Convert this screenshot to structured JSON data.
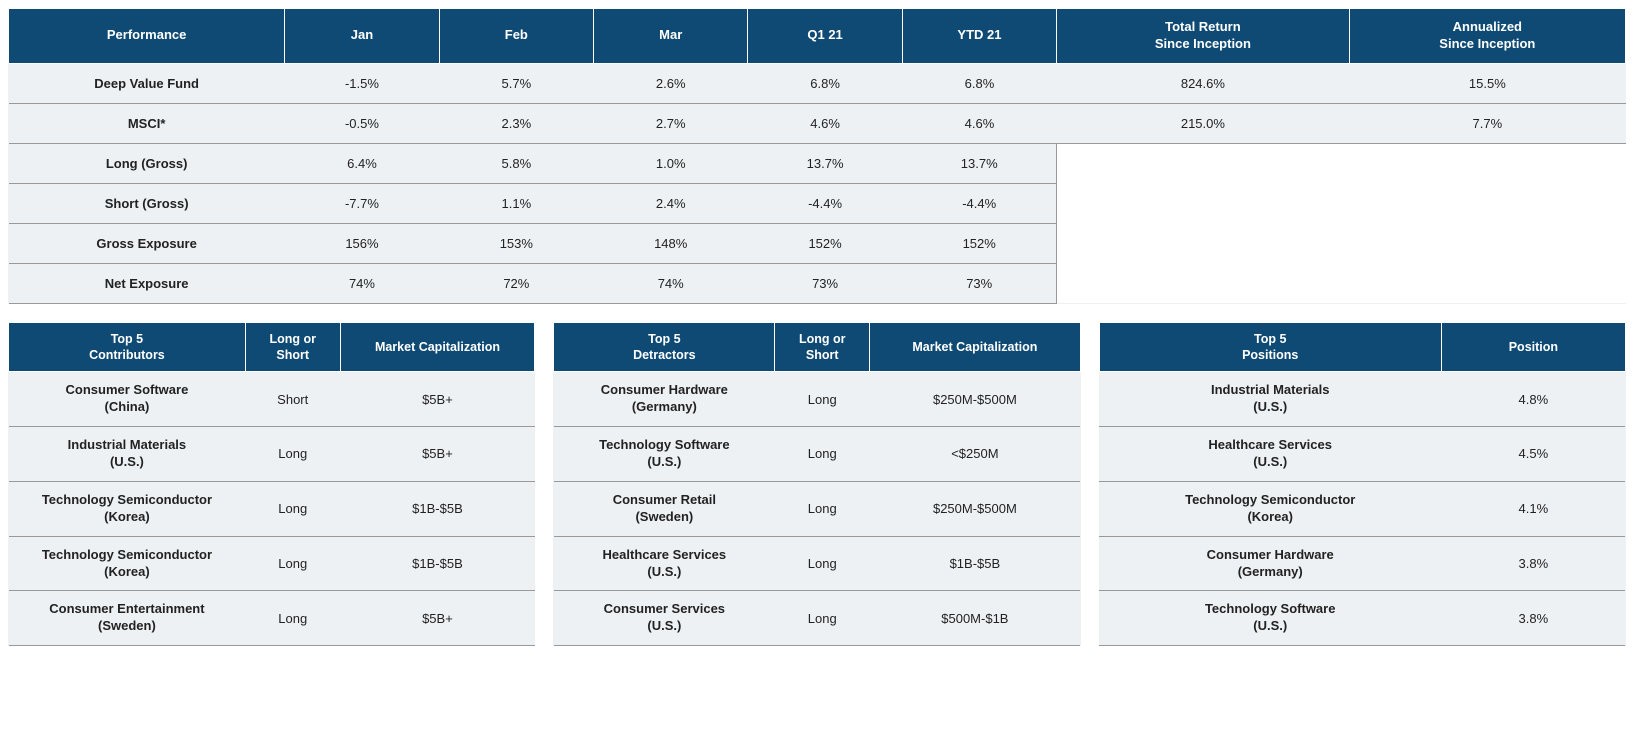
{
  "colors": {
    "header_bg": "#0f4a74",
    "header_text": "#ffffff",
    "body_bg": "#eef1f4",
    "border": "#999999",
    "text": "#222222"
  },
  "performance": {
    "headers": [
      "Performance",
      "Jan",
      "Feb",
      "Mar",
      "Q1 21",
      "YTD 21",
      "Total Return\nSince Inception",
      "Annualized\nSince Inception"
    ],
    "rows": [
      {
        "label": "Deep Value Fund",
        "jan": "-1.5%",
        "feb": "5.7%",
        "mar": "2.6%",
        "q1": "6.8%",
        "ytd": "6.8%",
        "total": "824.6%",
        "ann": "15.5%"
      },
      {
        "label": "MSCI*",
        "jan": "-0.5%",
        "feb": "2.3%",
        "mar": "2.7%",
        "q1": "4.6%",
        "ytd": "4.6%",
        "total": "215.0%",
        "ann": "7.7%"
      },
      {
        "label": "Long (Gross)",
        "jan": "6.4%",
        "feb": "5.8%",
        "mar": "1.0%",
        "q1": "13.7%",
        "ytd": "13.7%"
      },
      {
        "label": "Short (Gross)",
        "jan": "-7.7%",
        "feb": "1.1%",
        "mar": "2.4%",
        "q1": "-4.4%",
        "ytd": "-4.4%"
      },
      {
        "label": "Gross Exposure",
        "jan": "156%",
        "feb": "153%",
        "mar": "148%",
        "q1": "152%",
        "ytd": "152%"
      },
      {
        "label": "Net Exposure",
        "jan": "74%",
        "feb": "72%",
        "mar": "74%",
        "q1": "73%",
        "ytd": "73%"
      }
    ]
  },
  "contributors": {
    "headers": [
      "Top 5\nContributors",
      "Long or\nShort",
      "Market Capitalization"
    ],
    "rows": [
      {
        "name": "Consumer Software",
        "country": "(China)",
        "ls": "Short",
        "cap": "$5B+"
      },
      {
        "name": "Industrial Materials",
        "country": "(U.S.)",
        "ls": "Long",
        "cap": "$5B+"
      },
      {
        "name": "Technology Semiconductor",
        "country": "(Korea)",
        "ls": "Long",
        "cap": "$1B-$5B"
      },
      {
        "name": "Technology Semiconductor",
        "country": "(Korea)",
        "ls": "Long",
        "cap": "$1B-$5B"
      },
      {
        "name": "Consumer Entertainment",
        "country": "(Sweden)",
        "ls": "Long",
        "cap": "$5B+"
      }
    ]
  },
  "detractors": {
    "headers": [
      "Top 5\nDetractors",
      "Long or\nShort",
      "Market Capitalization"
    ],
    "rows": [
      {
        "name": "Consumer Hardware",
        "country": "(Germany)",
        "ls": "Long",
        "cap": "$250M-$500M"
      },
      {
        "name": "Technology Software",
        "country": "(U.S.)",
        "ls": "Long",
        "cap": "<$250M"
      },
      {
        "name": "Consumer Retail",
        "country": "(Sweden)",
        "ls": "Long",
        "cap": "$250M-$500M"
      },
      {
        "name": "Healthcare Services",
        "country": "(U.S.)",
        "ls": "Long",
        "cap": "$1B-$5B"
      },
      {
        "name": "Consumer Services",
        "country": "(U.S.)",
        "ls": "Long",
        "cap": "$500M-$1B"
      }
    ]
  },
  "positions": {
    "headers": [
      "Top 5\nPositions",
      "Position"
    ],
    "rows": [
      {
        "name": "Industrial Materials",
        "country": "(U.S.)",
        "pos": "4.8%"
      },
      {
        "name": "Healthcare Services",
        "country": "(U.S.)",
        "pos": "4.5%"
      },
      {
        "name": "Technology Semiconductor",
        "country": "(Korea)",
        "pos": "4.1%"
      },
      {
        "name": "Consumer Hardware",
        "country": "(Germany)",
        "pos": "3.8%"
      },
      {
        "name": "Technology Software",
        "country": "(U.S.)",
        "pos": "3.8%"
      }
    ]
  }
}
